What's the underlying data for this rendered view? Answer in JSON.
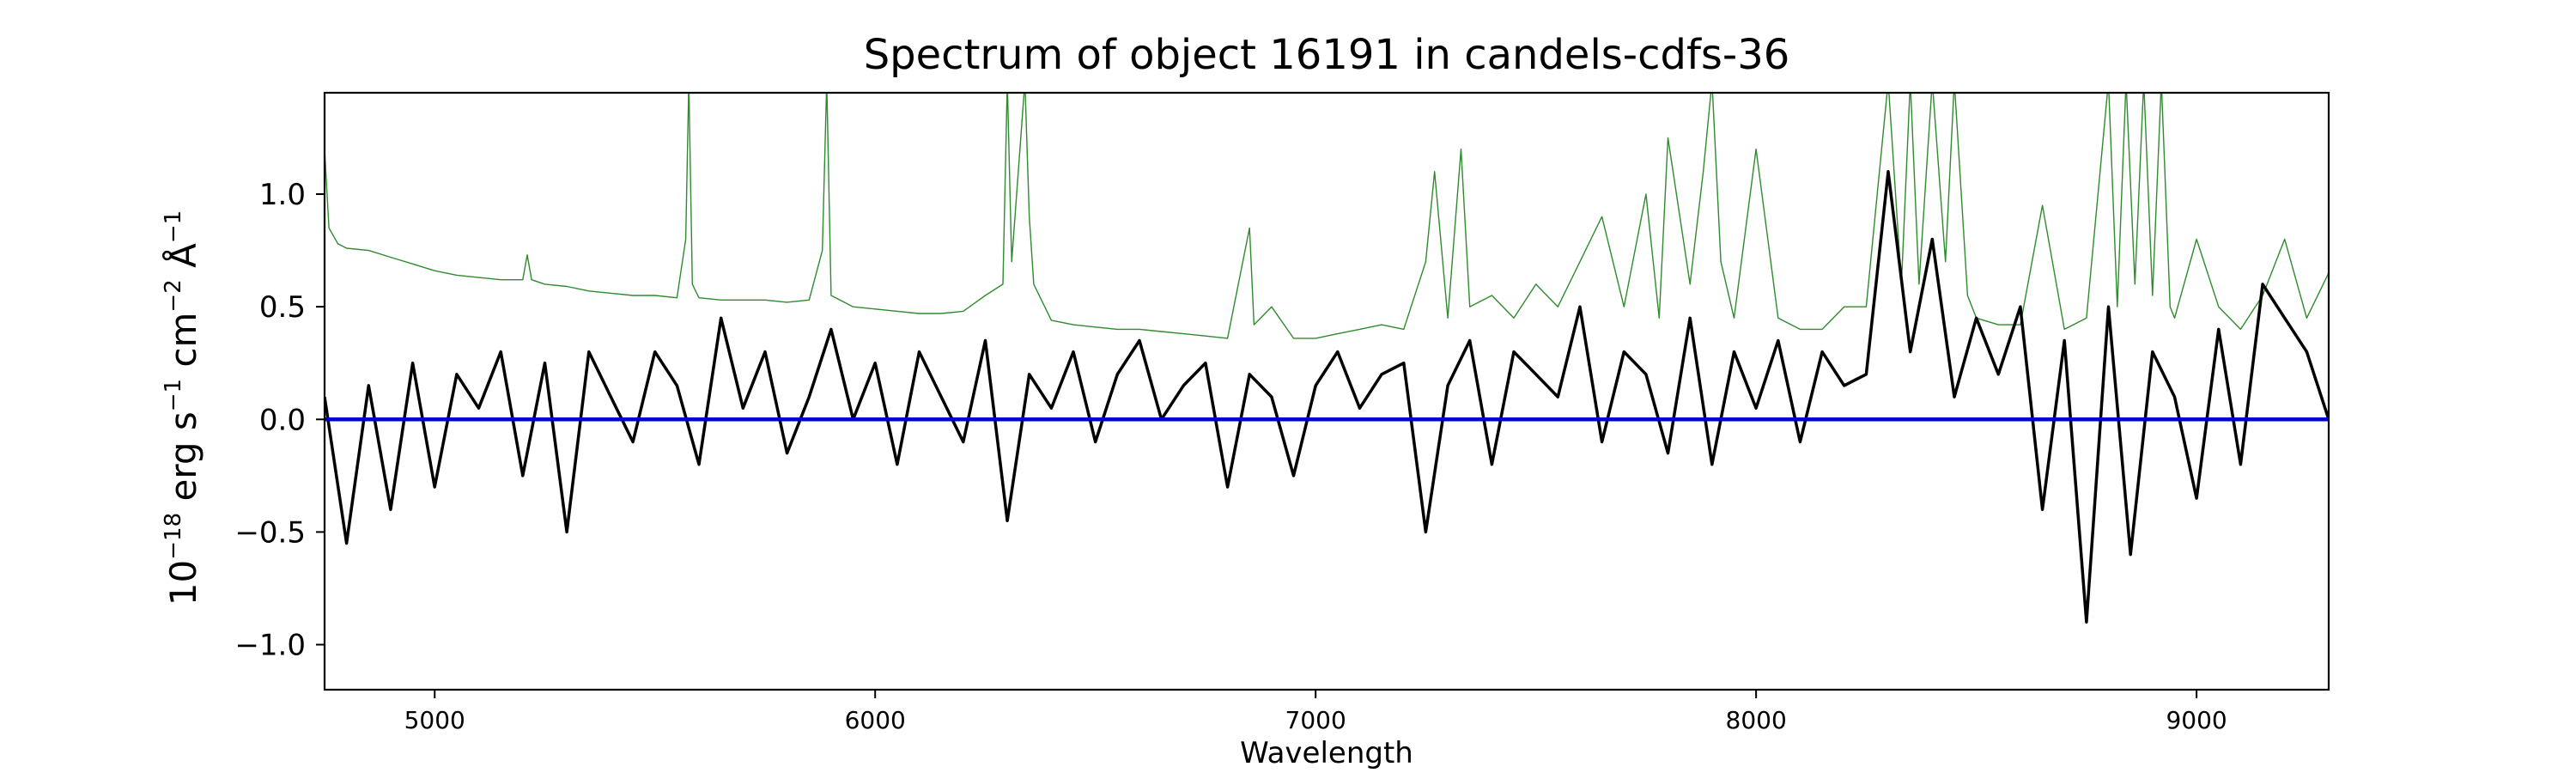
{
  "chart_data": {
    "type": "line",
    "title": "Spectrum of object 16191 in candels-cdfs-36",
    "xlabel": "Wavelength",
    "ylabel": {
      "base": "10",
      "exp1": "−18",
      "unit1": " erg s",
      "exp2": "−1",
      "unit2": " cm",
      "exp3": "−2",
      "unit3": " Å",
      "exp4": "−1"
    },
    "xlim": [
      4750,
      9300
    ],
    "ylim": [
      -1.2,
      1.45
    ],
    "x_ticks": [
      5000,
      6000,
      7000,
      8000,
      9000
    ],
    "x_tick_labels": [
      "5000",
      "6000",
      "7000",
      "8000",
      "9000"
    ],
    "y_ticks": [
      -1.0,
      -0.5,
      0.0,
      0.5,
      1.0
    ],
    "y_tick_labels": [
      "−1.0",
      "−0.5",
      "0.0",
      "0.5",
      "1.0"
    ],
    "grid": false,
    "series": [
      {
        "role": "flux",
        "color": "#000000",
        "x": [
          4750,
          4800,
          4850,
          4900,
          4950,
          5000,
          5050,
          5100,
          5150,
          5200,
          5250,
          5300,
          5350,
          5400,
          5450,
          5500,
          5550,
          5600,
          5650,
          5700,
          5750,
          5800,
          5850,
          5900,
          5950,
          6000,
          6050,
          6100,
          6150,
          6200,
          6250,
          6300,
          6350,
          6400,
          6450,
          6500,
          6550,
          6600,
          6650,
          6700,
          6750,
          6800,
          6850,
          6900,
          6950,
          7000,
          7050,
          7100,
          7150,
          7200,
          7250,
          7300,
          7350,
          7400,
          7450,
          7500,
          7550,
          7600,
          7650,
          7700,
          7750,
          7800,
          7850,
          7900,
          7950,
          8000,
          8050,
          8100,
          8150,
          8200,
          8250,
          8300,
          8350,
          8400,
          8450,
          8500,
          8550,
          8600,
          8650,
          8700,
          8750,
          8800,
          8850,
          8900,
          8950,
          9000,
          9050,
          9100,
          9150,
          9200,
          9250,
          9300
        ],
        "y": [
          0.1,
          -0.55,
          0.15,
          -0.4,
          0.25,
          -0.3,
          0.2,
          0.05,
          0.3,
          -0.25,
          0.25,
          -0.5,
          0.3,
          0.1,
          -0.1,
          0.3,
          0.15,
          -0.2,
          0.45,
          0.05,
          0.3,
          -0.15,
          0.1,
          0.4,
          0.0,
          0.25,
          -0.2,
          0.3,
          0.1,
          -0.1,
          0.35,
          -0.45,
          0.2,
          0.05,
          0.3,
          -0.1,
          0.2,
          0.35,
          0.0,
          0.15,
          0.25,
          -0.3,
          0.2,
          0.1,
          -0.25,
          0.15,
          0.3,
          0.05,
          0.2,
          0.25,
          -0.5,
          0.15,
          0.35,
          -0.2,
          0.3,
          0.2,
          0.1,
          0.5,
          -0.1,
          0.3,
          0.2,
          -0.15,
          0.45,
          -0.2,
          0.3,
          0.05,
          0.35,
          -0.1,
          0.3,
          0.15,
          0.2,
          1.1,
          0.3,
          0.8,
          0.1,
          0.45,
          0.2,
          0.5,
          -0.4,
          0.35,
          -0.9,
          0.5,
          -0.6,
          0.3,
          0.1,
          -0.35,
          0.4,
          -0.2,
          0.6,
          0.45,
          0.3,
          0.0
        ]
      },
      {
        "role": "error",
        "color": "#2e8b2e",
        "x": [
          4750,
          4760,
          4780,
          4800,
          4850,
          4900,
          4950,
          5000,
          5050,
          5100,
          5150,
          5200,
          5210,
          5220,
          5250,
          5300,
          5350,
          5400,
          5450,
          5500,
          5550,
          5570,
          5577,
          5585,
          5600,
          5650,
          5700,
          5750,
          5800,
          5850,
          5880,
          5890,
          5900,
          5950,
          6000,
          6050,
          6100,
          6150,
          6200,
          6250,
          6290,
          6300,
          6310,
          6340,
          6350,
          6360,
          6400,
          6450,
          6500,
          6550,
          6600,
          6650,
          6700,
          6750,
          6800,
          6850,
          6860,
          6900,
          6950,
          7000,
          7050,
          7100,
          7150,
          7200,
          7250,
          7270,
          7300,
          7330,
          7350,
          7400,
          7450,
          7500,
          7550,
          7600,
          7650,
          7700,
          7750,
          7780,
          7800,
          7850,
          7880,
          7900,
          7920,
          7950,
          8000,
          8050,
          8100,
          8150,
          8200,
          8250,
          8300,
          8330,
          8350,
          8370,
          8400,
          8430,
          8450,
          8480,
          8500,
          8550,
          8600,
          8650,
          8700,
          8750,
          8800,
          8820,
          8840,
          8860,
          8880,
          8900,
          8920,
          8940,
          8950,
          9000,
          9050,
          9100,
          9150,
          9200,
          9250,
          9300
        ],
        "y": [
          1.2,
          0.85,
          0.78,
          0.76,
          0.75,
          0.72,
          0.69,
          0.66,
          0.64,
          0.63,
          0.62,
          0.62,
          0.73,
          0.62,
          0.6,
          0.59,
          0.57,
          0.56,
          0.55,
          0.55,
          0.54,
          0.8,
          1.5,
          0.6,
          0.54,
          0.53,
          0.53,
          0.53,
          0.52,
          0.53,
          0.75,
          1.5,
          0.55,
          0.5,
          0.49,
          0.48,
          0.47,
          0.47,
          0.48,
          0.55,
          0.6,
          1.5,
          0.7,
          1.5,
          0.9,
          0.6,
          0.44,
          0.42,
          0.41,
          0.4,
          0.4,
          0.39,
          0.38,
          0.37,
          0.36,
          0.85,
          0.42,
          0.5,
          0.36,
          0.36,
          0.38,
          0.4,
          0.42,
          0.4,
          0.7,
          1.1,
          0.45,
          1.2,
          0.5,
          0.55,
          0.45,
          0.6,
          0.5,
          0.7,
          0.9,
          0.5,
          1.0,
          0.45,
          1.25,
          0.6,
          1.1,
          1.5,
          0.7,
          0.45,
          1.2,
          0.45,
          0.4,
          0.4,
          0.5,
          0.5,
          1.5,
          0.6,
          1.5,
          0.6,
          1.5,
          0.7,
          1.5,
          0.55,
          0.45,
          0.42,
          0.42,
          0.95,
          0.4,
          0.45,
          1.5,
          0.5,
          1.5,
          0.6,
          1.5,
          0.55,
          1.5,
          0.5,
          0.45,
          0.8,
          0.5,
          0.4,
          0.55,
          0.8,
          0.45,
          0.65
        ]
      },
      {
        "role": "continuum",
        "color": "#0000cc",
        "x": [
          4750,
          9300
        ],
        "y": [
          0.0,
          0.0
        ]
      }
    ]
  }
}
